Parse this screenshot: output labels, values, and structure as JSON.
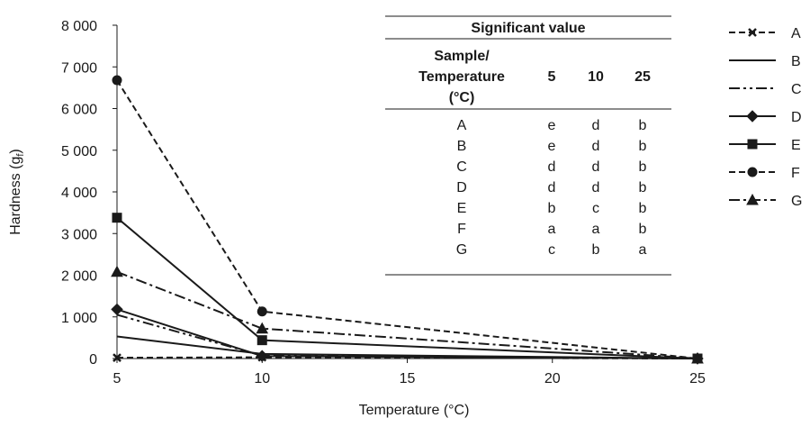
{
  "chart_data": {
    "type": "line",
    "xlabel": "Temperature (°C)",
    "ylabel": {
      "main": "Hardness (g",
      "sub": "f",
      "close": ")"
    },
    "x_ticks": [
      "5",
      "10",
      "15",
      "20",
      "25"
    ],
    "y_ticks": [
      "0",
      "1 000",
      "2 000",
      "3 000",
      "4 000",
      "5 000",
      "6 000",
      "7 000",
      "8 000"
    ],
    "xlim": [
      5,
      25
    ],
    "ylim": [
      0,
      8000
    ],
    "grid": false,
    "legend_position": "right",
    "series": [
      {
        "name": "A",
        "x": [
          5,
          10,
          25
        ],
        "values": [
          20,
          30,
          0
        ],
        "line": "dashed",
        "marker": "cross"
      },
      {
        "name": "B",
        "x": [
          5,
          10,
          25
        ],
        "values": [
          530,
          110,
          0
        ],
        "line": "solid",
        "marker": "none"
      },
      {
        "name": "C",
        "x": [
          5,
          10,
          25
        ],
        "values": [
          1050,
          70,
          0
        ],
        "line": "dashdotdot",
        "marker": "none"
      },
      {
        "name": "D",
        "x": [
          5,
          10,
          25
        ],
        "values": [
          1180,
          60,
          0
        ],
        "line": "solid",
        "marker": "diamond"
      },
      {
        "name": "E",
        "x": [
          5,
          10,
          25
        ],
        "values": [
          3380,
          440,
          0
        ],
        "line": "solid",
        "marker": "square"
      },
      {
        "name": "F",
        "x": [
          5,
          10,
          25
        ],
        "values": [
          6680,
          1130,
          0
        ],
        "line": "dashed",
        "marker": "circle"
      },
      {
        "name": "G",
        "x": [
          5,
          10,
          25
        ],
        "values": [
          2080,
          720,
          0
        ],
        "line": "dashdot",
        "marker": "triangle"
      }
    ],
    "table": {
      "title": "Significant value",
      "header_label": [
        "Sample/",
        "Temperature",
        "(°C)"
      ],
      "columns": [
        "5",
        "10",
        "25"
      ],
      "rows": [
        {
          "sample": "A",
          "values": [
            "e",
            "d",
            "b"
          ]
        },
        {
          "sample": "B",
          "values": [
            "e",
            "d",
            "b"
          ]
        },
        {
          "sample": "C",
          "values": [
            "d",
            "d",
            "b"
          ]
        },
        {
          "sample": "D",
          "values": [
            "d",
            "d",
            "b"
          ]
        },
        {
          "sample": "E",
          "values": [
            "b",
            "c",
            "b"
          ]
        },
        {
          "sample": "F",
          "values": [
            "a",
            "a",
            "b"
          ]
        },
        {
          "sample": "G",
          "values": [
            "c",
            "b",
            "a"
          ]
        }
      ]
    },
    "colors": {
      "line": "#1a1a1a",
      "background": "#ffffff"
    }
  }
}
